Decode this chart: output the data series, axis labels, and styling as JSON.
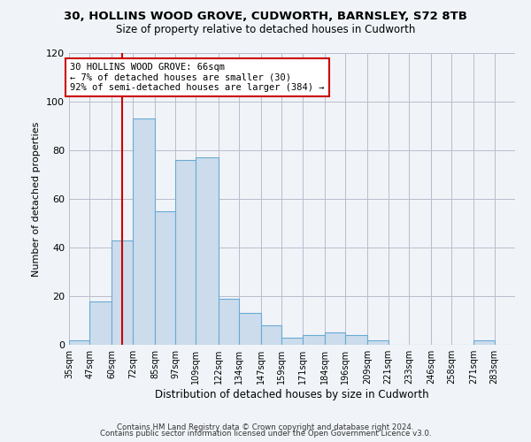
{
  "title": "30, HOLLINS WOOD GROVE, CUDWORTH, BARNSLEY, S72 8TB",
  "subtitle": "Size of property relative to detached houses in Cudworth",
  "xlabel": "Distribution of detached houses by size in Cudworth",
  "ylabel": "Number of detached properties",
  "bar_color": "#ccdcec",
  "bar_edge_color": "#6aaad4",
  "background_color": "#f0f4f8",
  "plot_bg_color": "#f0f4f8",
  "grid_color": "#bbbbcc",
  "annotation_box_color": "#cc0000",
  "annotation_line_color": "#cc0000",
  "annotation_title": "30 HOLLINS WOOD GROVE: 66sqm",
  "annotation_line1": "← 7% of detached houses are smaller (30)",
  "annotation_line2": "92% of semi-detached houses are larger (384) →",
  "vline_x": 66,
  "categories": [
    "35sqm",
    "47sqm",
    "60sqm",
    "72sqm",
    "85sqm",
    "97sqm",
    "109sqm",
    "122sqm",
    "134sqm",
    "147sqm",
    "159sqm",
    "171sqm",
    "184sqm",
    "196sqm",
    "209sqm",
    "221sqm",
    "233sqm",
    "246sqm",
    "258sqm",
    "271sqm",
    "283sqm"
  ],
  "bin_edges": [
    35,
    47,
    60,
    72,
    85,
    97,
    109,
    122,
    134,
    147,
    159,
    171,
    184,
    196,
    209,
    221,
    233,
    246,
    258,
    271,
    283,
    295
  ],
  "values": [
    2,
    18,
    43,
    93,
    55,
    76,
    77,
    19,
    13,
    8,
    3,
    4,
    5,
    4,
    2,
    0,
    0,
    0,
    0,
    2,
    0
  ],
  "ylim": [
    0,
    120
  ],
  "yticks": [
    0,
    20,
    40,
    60,
    80,
    100,
    120
  ],
  "footer1": "Contains HM Land Registry data © Crown copyright and database right 2024.",
  "footer2": "Contains public sector information licensed under the Open Government Licence v3.0."
}
